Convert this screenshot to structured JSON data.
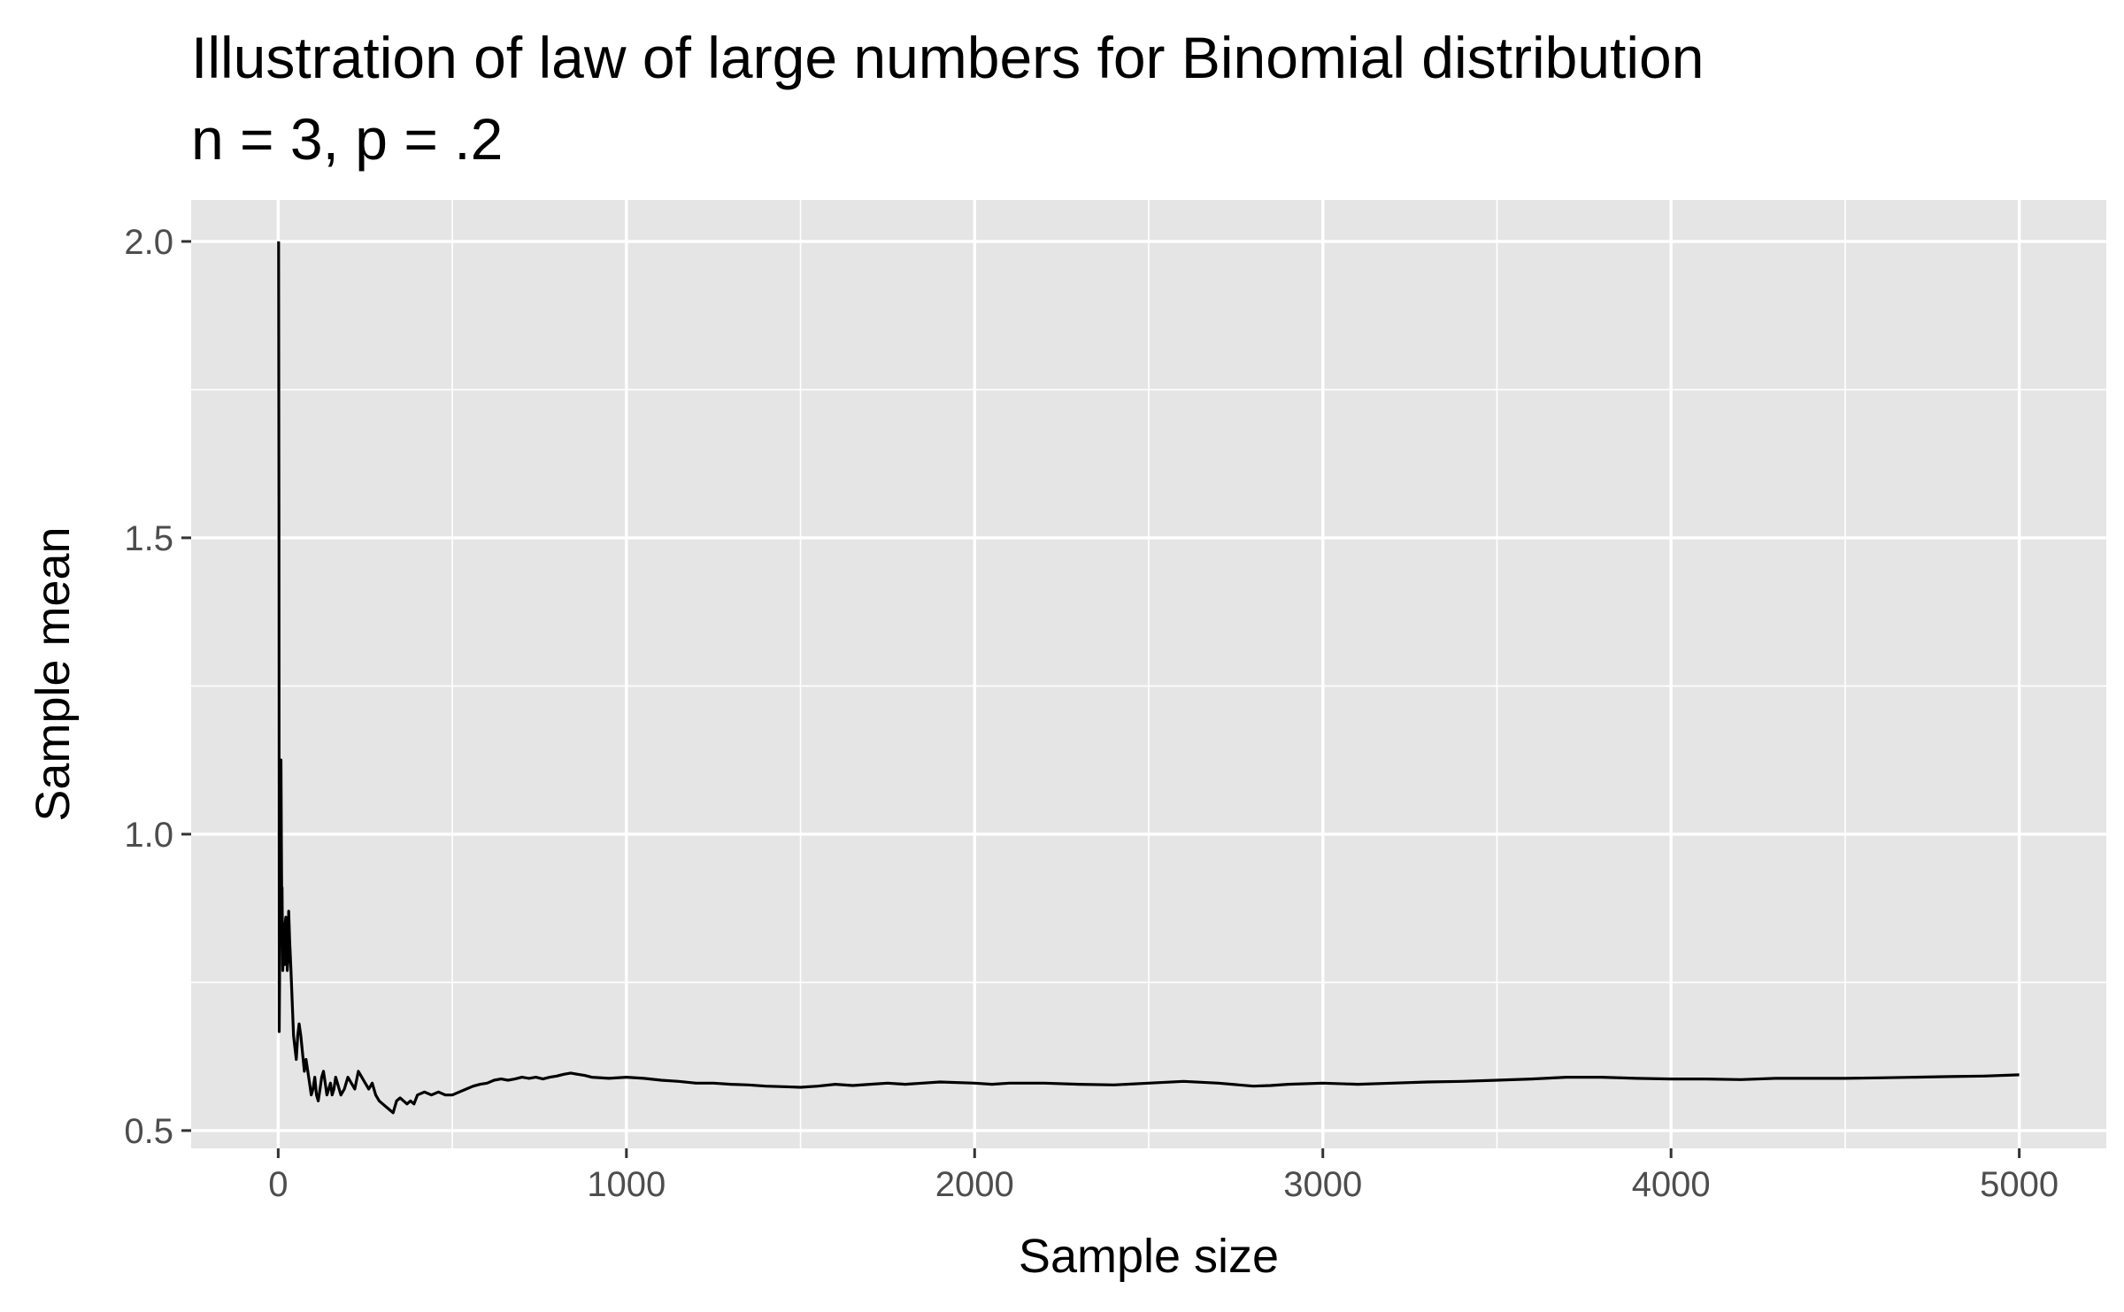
{
  "chart_data": {
    "type": "line",
    "title": "Illustration of law of large numbers for Binomial distribution",
    "subtitle": "n = 3, p = .2",
    "xlabel": "Sample size",
    "ylabel": "Sample mean",
    "xlim": [
      -250,
      5250
    ],
    "ylim": [
      0.47,
      2.07
    ],
    "x_ticks": [
      0,
      1000,
      2000,
      3000,
      4000,
      5000
    ],
    "x_tick_labels": [
      "0",
      "1000",
      "2000",
      "3000",
      "4000",
      "5000"
    ],
    "y_ticks": [
      0.5,
      1.0,
      1.5,
      2.0
    ],
    "y_tick_labels": [
      "0.5",
      "1.0",
      "1.5",
      "2.0"
    ],
    "x_minor_ticks": [
      500,
      1500,
      2500,
      3500,
      4500
    ],
    "y_minor_ticks": [
      0.75,
      1.25,
      1.75
    ],
    "grid": true,
    "legend": "none",
    "colors": {
      "panel_background": "#e5e5e5",
      "grid": "#ffffff",
      "line": "#000000",
      "tick_label": "#4d4d4d",
      "text": "#000000"
    },
    "series": [
      {
        "values": [
          [
            1,
            2.0
          ],
          [
            2,
            1.5
          ],
          [
            3,
            0.667
          ],
          [
            4,
            0.75
          ],
          [
            5,
            1.0
          ],
          [
            6,
            0.83
          ],
          [
            7,
            1.0
          ],
          [
            8,
            1.125
          ],
          [
            9,
            1.0
          ],
          [
            10,
            0.9
          ],
          [
            11,
            0.91
          ],
          [
            12,
            0.83
          ],
          [
            13,
            0.77
          ],
          [
            14,
            0.79
          ],
          [
            15,
            0.8
          ],
          [
            16,
            0.81
          ],
          [
            18,
            0.78
          ],
          [
            20,
            0.85
          ],
          [
            22,
            0.86
          ],
          [
            24,
            0.83
          ],
          [
            26,
            0.77
          ],
          [
            28,
            0.79
          ],
          [
            30,
            0.87
          ],
          [
            33,
            0.82
          ],
          [
            36,
            0.78
          ],
          [
            40,
            0.72
          ],
          [
            44,
            0.66
          ],
          [
            48,
            0.64
          ],
          [
            52,
            0.62
          ],
          [
            56,
            0.66
          ],
          [
            60,
            0.68
          ],
          [
            65,
            0.66
          ],
          [
            70,
            0.63
          ],
          [
            75,
            0.6
          ],
          [
            80,
            0.62
          ],
          [
            85,
            0.6
          ],
          [
            90,
            0.58
          ],
          [
            95,
            0.56
          ],
          [
            100,
            0.57
          ],
          [
            105,
            0.59
          ],
          [
            110,
            0.56
          ],
          [
            115,
            0.55
          ],
          [
            120,
            0.57
          ],
          [
            125,
            0.59
          ],
          [
            130,
            0.6
          ],
          [
            135,
            0.58
          ],
          [
            140,
            0.56
          ],
          [
            145,
            0.57
          ],
          [
            150,
            0.58
          ],
          [
            155,
            0.56
          ],
          [
            160,
            0.57
          ],
          [
            165,
            0.59
          ],
          [
            170,
            0.58
          ],
          [
            180,
            0.56
          ],
          [
            190,
            0.57
          ],
          [
            200,
            0.59
          ],
          [
            210,
            0.58
          ],
          [
            220,
            0.57
          ],
          [
            230,
            0.6
          ],
          [
            240,
            0.59
          ],
          [
            250,
            0.58
          ],
          [
            260,
            0.57
          ],
          [
            270,
            0.58
          ],
          [
            280,
            0.56
          ],
          [
            290,
            0.55
          ],
          [
            300,
            0.545
          ],
          [
            310,
            0.54
          ],
          [
            320,
            0.535
          ],
          [
            330,
            0.53
          ],
          [
            340,
            0.55
          ],
          [
            350,
            0.555
          ],
          [
            360,
            0.55
          ],
          [
            370,
            0.545
          ],
          [
            380,
            0.55
          ],
          [
            390,
            0.545
          ],
          [
            400,
            0.56
          ],
          [
            420,
            0.565
          ],
          [
            440,
            0.56
          ],
          [
            460,
            0.565
          ],
          [
            480,
            0.56
          ],
          [
            500,
            0.56
          ],
          [
            520,
            0.565
          ],
          [
            540,
            0.57
          ],
          [
            560,
            0.575
          ],
          [
            580,
            0.578
          ],
          [
            600,
            0.58
          ],
          [
            620,
            0.585
          ],
          [
            640,
            0.587
          ],
          [
            660,
            0.585
          ],
          [
            680,
            0.587
          ],
          [
            700,
            0.59
          ],
          [
            720,
            0.588
          ],
          [
            740,
            0.59
          ],
          [
            760,
            0.587
          ],
          [
            780,
            0.59
          ],
          [
            800,
            0.592
          ],
          [
            820,
            0.595
          ],
          [
            840,
            0.597
          ],
          [
            860,
            0.595
          ],
          [
            880,
            0.593
          ],
          [
            900,
            0.59
          ],
          [
            950,
            0.588
          ],
          [
            1000,
            0.59
          ],
          [
            1050,
            0.588
          ],
          [
            1100,
            0.585
          ],
          [
            1150,
            0.583
          ],
          [
            1200,
            0.58
          ],
          [
            1250,
            0.58
          ],
          [
            1300,
            0.578
          ],
          [
            1350,
            0.577
          ],
          [
            1400,
            0.575
          ],
          [
            1450,
            0.574
          ],
          [
            1500,
            0.573
          ],
          [
            1550,
            0.575
          ],
          [
            1600,
            0.578
          ],
          [
            1650,
            0.576
          ],
          [
            1700,
            0.578
          ],
          [
            1750,
            0.58
          ],
          [
            1800,
            0.578
          ],
          [
            1850,
            0.58
          ],
          [
            1900,
            0.582
          ],
          [
            2000,
            0.58
          ],
          [
            2050,
            0.578
          ],
          [
            2100,
            0.58
          ],
          [
            2200,
            0.58
          ],
          [
            2300,
            0.578
          ],
          [
            2400,
            0.577
          ],
          [
            2500,
            0.58
          ],
          [
            2600,
            0.583
          ],
          [
            2700,
            0.58
          ],
          [
            2800,
            0.575
          ],
          [
            2850,
            0.576
          ],
          [
            2900,
            0.578
          ],
          [
            3000,
            0.58
          ],
          [
            3100,
            0.578
          ],
          [
            3200,
            0.58
          ],
          [
            3300,
            0.582
          ],
          [
            3400,
            0.583
          ],
          [
            3500,
            0.585
          ],
          [
            3600,
            0.587
          ],
          [
            3700,
            0.59
          ],
          [
            3800,
            0.59
          ],
          [
            3900,
            0.588
          ],
          [
            4000,
            0.587
          ],
          [
            4100,
            0.587
          ],
          [
            4200,
            0.586
          ],
          [
            4300,
            0.588
          ],
          [
            4400,
            0.588
          ],
          [
            4500,
            0.588
          ],
          [
            4600,
            0.589
          ],
          [
            4700,
            0.59
          ],
          [
            4800,
            0.591
          ],
          [
            4900,
            0.592
          ],
          [
            5000,
            0.594
          ]
        ]
      }
    ]
  }
}
